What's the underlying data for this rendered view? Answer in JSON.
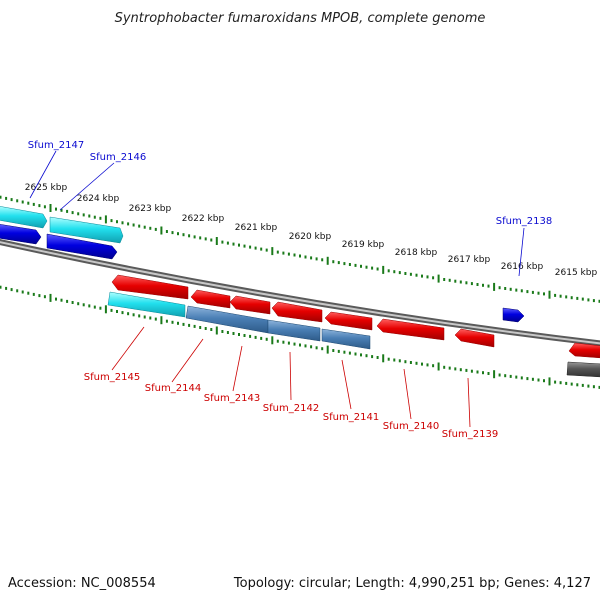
{
  "title": "Syntrophobacter fumaroxidans MPOB, complete genome",
  "accession": "Accession: NC_008554",
  "summary": "Topology: circular; Length: 4,990,251 bp; Genes: 4,127",
  "ruler_labels": [
    "2625 kbp",
    "2624 kbp",
    "2623 kbp",
    "2622 kbp",
    "2621 kbp",
    "2620 kbp",
    "2619 kbp",
    "2618 kbp",
    "2617 kbp",
    "2616 kbp",
    "2615 kbp"
  ],
  "forward_genes": [
    "Sfum_2147",
    "Sfum_2146",
    "Sfum_2138"
  ],
  "reverse_genes": [
    "Sfum_2145",
    "Sfum_2144",
    "Sfum_2143",
    "Sfum_2142",
    "Sfum_2141",
    "Sfum_2140",
    "Sfum_2139"
  ],
  "colors": {
    "forward_label": "#0a0ad0",
    "reverse_label": "#cc0000",
    "tick": "#1a7a1a",
    "backbone": "#7a7a7a",
    "red_gene": "#e60000",
    "blue_gene": "#0000e0",
    "cyan_gene": "#22e0ee",
    "steel_gene": "#4a7fb5",
    "gray_gene": "#555555"
  }
}
